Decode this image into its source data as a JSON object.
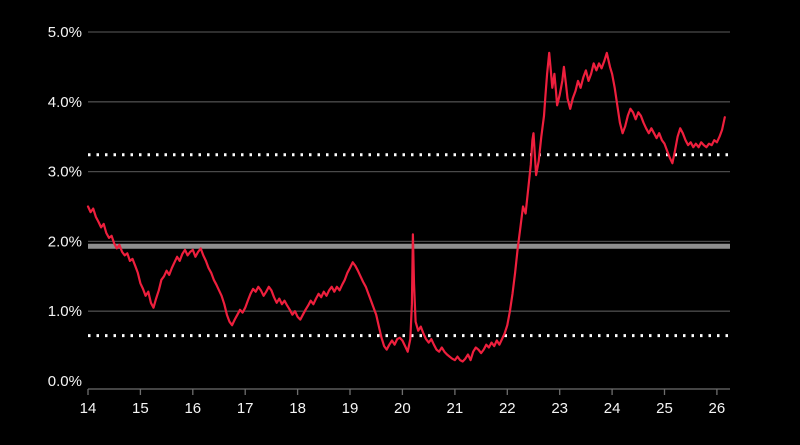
{
  "chart_data": {
    "type": "line",
    "title": "",
    "xlabel": "",
    "ylabel": "",
    "legend": "none",
    "grid": "horizontal",
    "background": "#000000",
    "x_range": [
      14,
      26.25
    ],
    "y_range": [
      0,
      5
    ],
    "y_ticks": [
      {
        "label": "0.0%",
        "value": 0
      },
      {
        "label": "1.0%",
        "value": 1
      },
      {
        "label": "2.0%",
        "value": 2
      },
      {
        "label": "3.0%",
        "value": 3
      },
      {
        "label": "4.0%",
        "value": 4
      },
      {
        "label": "5.0%",
        "value": 5
      }
    ],
    "x_ticks": [
      {
        "label": "14",
        "value": 14
      },
      {
        "label": "15",
        "value": 15
      },
      {
        "label": "16",
        "value": 16
      },
      {
        "label": "17",
        "value": 17
      },
      {
        "label": "18",
        "value": 18
      },
      {
        "label": "19",
        "value": 19
      },
      {
        "label": "20",
        "value": 20
      },
      {
        "label": "21",
        "value": 21
      },
      {
        "label": "22",
        "value": 22
      },
      {
        "label": "23",
        "value": 23
      },
      {
        "label": "24",
        "value": 24
      },
      {
        "label": "25",
        "value": 25
      },
      {
        "label": "26",
        "value": 26
      }
    ],
    "gridline_values": [
      1,
      2,
      3,
      4,
      5
    ],
    "colors": {
      "gridline": "#4a4a4a",
      "axis": "#6e6e6e",
      "average_line": "#8f8f8f",
      "band_line": "#ffffff",
      "series": "#ee1f3d",
      "label": "#f5f5f5"
    },
    "reference_lines": [
      {
        "name": "average-line",
        "value": 1.93,
        "color": "#8f8f8f",
        "width": 5,
        "dash": ""
      },
      {
        "name": "upper-band-line",
        "value": 3.24,
        "color": "#ffffff",
        "width": 3,
        "dash": "2.5 6"
      },
      {
        "name": "lower-band-line",
        "value": 0.65,
        "color": "#ffffff",
        "width": 3,
        "dash": "2.5 6"
      }
    ],
    "series": [
      {
        "name": "line",
        "color": "#ee1f3d",
        "points": [
          [
            14.0,
            2.5
          ],
          [
            14.05,
            2.42
          ],
          [
            14.1,
            2.47
          ],
          [
            14.15,
            2.35
          ],
          [
            14.2,
            2.28
          ],
          [
            14.25,
            2.2
          ],
          [
            14.3,
            2.25
          ],
          [
            14.35,
            2.12
          ],
          [
            14.4,
            2.05
          ],
          [
            14.45,
            2.08
          ],
          [
            14.5,
            1.97
          ],
          [
            14.55,
            1.9
          ],
          [
            14.6,
            1.95
          ],
          [
            14.65,
            1.85
          ],
          [
            14.7,
            1.8
          ],
          [
            14.75,
            1.83
          ],
          [
            14.8,
            1.72
          ],
          [
            14.85,
            1.75
          ],
          [
            14.9,
            1.65
          ],
          [
            14.95,
            1.55
          ],
          [
            15.0,
            1.4
          ],
          [
            15.05,
            1.32
          ],
          [
            15.1,
            1.22
          ],
          [
            15.15,
            1.28
          ],
          [
            15.2,
            1.12
          ],
          [
            15.25,
            1.05
          ],
          [
            15.3,
            1.18
          ],
          [
            15.35,
            1.3
          ],
          [
            15.4,
            1.45
          ],
          [
            15.45,
            1.5
          ],
          [
            15.5,
            1.58
          ],
          [
            15.55,
            1.52
          ],
          [
            15.6,
            1.62
          ],
          [
            15.65,
            1.7
          ],
          [
            15.7,
            1.78
          ],
          [
            15.75,
            1.72
          ],
          [
            15.8,
            1.82
          ],
          [
            15.85,
            1.88
          ],
          [
            15.9,
            1.8
          ],
          [
            15.95,
            1.85
          ],
          [
            16.0,
            1.88
          ],
          [
            16.05,
            1.78
          ],
          [
            16.1,
            1.85
          ],
          [
            16.15,
            1.9
          ],
          [
            16.2,
            1.8
          ],
          [
            16.25,
            1.72
          ],
          [
            16.3,
            1.62
          ],
          [
            16.35,
            1.55
          ],
          [
            16.4,
            1.45
          ],
          [
            16.45,
            1.38
          ],
          [
            16.5,
            1.3
          ],
          [
            16.55,
            1.22
          ],
          [
            16.6,
            1.1
          ],
          [
            16.65,
            0.95
          ],
          [
            16.7,
            0.85
          ],
          [
            16.75,
            0.8
          ],
          [
            16.8,
            0.88
          ],
          [
            16.85,
            0.95
          ],
          [
            16.9,
            1.02
          ],
          [
            16.95,
            0.98
          ],
          [
            17.0,
            1.05
          ],
          [
            17.05,
            1.15
          ],
          [
            17.1,
            1.25
          ],
          [
            17.15,
            1.32
          ],
          [
            17.2,
            1.28
          ],
          [
            17.25,
            1.35
          ],
          [
            17.3,
            1.3
          ],
          [
            17.35,
            1.22
          ],
          [
            17.4,
            1.28
          ],
          [
            17.45,
            1.35
          ],
          [
            17.5,
            1.3
          ],
          [
            17.55,
            1.2
          ],
          [
            17.6,
            1.12
          ],
          [
            17.65,
            1.18
          ],
          [
            17.7,
            1.1
          ],
          [
            17.75,
            1.15
          ],
          [
            17.8,
            1.08
          ],
          [
            17.85,
            1.02
          ],
          [
            17.9,
            0.95
          ],
          [
            17.95,
            1.0
          ],
          [
            18.0,
            0.92
          ],
          [
            18.05,
            0.88
          ],
          [
            18.1,
            0.95
          ],
          [
            18.15,
            1.02
          ],
          [
            18.2,
            1.08
          ],
          [
            18.25,
            1.15
          ],
          [
            18.3,
            1.1
          ],
          [
            18.35,
            1.18
          ],
          [
            18.4,
            1.25
          ],
          [
            18.45,
            1.2
          ],
          [
            18.5,
            1.28
          ],
          [
            18.55,
            1.22
          ],
          [
            18.6,
            1.3
          ],
          [
            18.65,
            1.35
          ],
          [
            18.7,
            1.28
          ],
          [
            18.75,
            1.35
          ],
          [
            18.8,
            1.3
          ],
          [
            18.85,
            1.38
          ],
          [
            18.9,
            1.45
          ],
          [
            18.95,
            1.55
          ],
          [
            19.0,
            1.62
          ],
          [
            19.05,
            1.7
          ],
          [
            19.1,
            1.65
          ],
          [
            19.15,
            1.58
          ],
          [
            19.2,
            1.5
          ],
          [
            19.25,
            1.42
          ],
          [
            19.3,
            1.35
          ],
          [
            19.35,
            1.25
          ],
          [
            19.4,
            1.15
          ],
          [
            19.45,
            1.05
          ],
          [
            19.5,
            0.95
          ],
          [
            19.55,
            0.78
          ],
          [
            19.6,
            0.62
          ],
          [
            19.65,
            0.5
          ],
          [
            19.7,
            0.45
          ],
          [
            19.75,
            0.52
          ],
          [
            19.8,
            0.58
          ],
          [
            19.85,
            0.52
          ],
          [
            19.9,
            0.6
          ],
          [
            19.95,
            0.62
          ],
          [
            20.0,
            0.58
          ],
          [
            20.05,
            0.5
          ],
          [
            20.1,
            0.42
          ],
          [
            20.15,
            0.6
          ],
          [
            20.18,
            1.1
          ],
          [
            20.2,
            2.1
          ],
          [
            20.22,
            1.4
          ],
          [
            20.25,
            0.85
          ],
          [
            20.3,
            0.72
          ],
          [
            20.35,
            0.78
          ],
          [
            20.4,
            0.68
          ],
          [
            20.45,
            0.6
          ],
          [
            20.5,
            0.55
          ],
          [
            20.55,
            0.6
          ],
          [
            20.6,
            0.52
          ],
          [
            20.65,
            0.45
          ],
          [
            20.7,
            0.42
          ],
          [
            20.75,
            0.48
          ],
          [
            20.8,
            0.42
          ],
          [
            20.85,
            0.38
          ],
          [
            20.9,
            0.35
          ],
          [
            20.95,
            0.32
          ],
          [
            21.0,
            0.3
          ],
          [
            21.05,
            0.35
          ],
          [
            21.1,
            0.3
          ],
          [
            21.15,
            0.28
          ],
          [
            21.2,
            0.32
          ],
          [
            21.25,
            0.38
          ],
          [
            21.3,
            0.3
          ],
          [
            21.35,
            0.42
          ],
          [
            21.4,
            0.48
          ],
          [
            21.45,
            0.45
          ],
          [
            21.5,
            0.4
          ],
          [
            21.55,
            0.45
          ],
          [
            21.6,
            0.52
          ],
          [
            21.65,
            0.48
          ],
          [
            21.7,
            0.55
          ],
          [
            21.75,
            0.5
          ],
          [
            21.8,
            0.58
          ],
          [
            21.85,
            0.52
          ],
          [
            21.9,
            0.6
          ],
          [
            21.95,
            0.68
          ],
          [
            22.0,
            0.8
          ],
          [
            22.05,
            1.0
          ],
          [
            22.1,
            1.25
          ],
          [
            22.15,
            1.55
          ],
          [
            22.2,
            1.9
          ],
          [
            22.25,
            2.2
          ],
          [
            22.3,
            2.5
          ],
          [
            22.35,
            2.4
          ],
          [
            22.4,
            2.75
          ],
          [
            22.45,
            3.1
          ],
          [
            22.48,
            3.45
          ],
          [
            22.5,
            3.55
          ],
          [
            22.53,
            3.2
          ],
          [
            22.55,
            2.95
          ],
          [
            22.6,
            3.15
          ],
          [
            22.65,
            3.5
          ],
          [
            22.7,
            3.8
          ],
          [
            22.73,
            4.1
          ],
          [
            22.76,
            4.4
          ],
          [
            22.8,
            4.7
          ],
          [
            22.83,
            4.45
          ],
          [
            22.86,
            4.2
          ],
          [
            22.9,
            4.4
          ],
          [
            22.93,
            4.15
          ],
          [
            22.95,
            3.95
          ],
          [
            23.0,
            4.1
          ],
          [
            23.05,
            4.3
          ],
          [
            23.08,
            4.5
          ],
          [
            23.12,
            4.25
          ],
          [
            23.15,
            4.05
          ],
          [
            23.2,
            3.9
          ],
          [
            23.25,
            4.05
          ],
          [
            23.3,
            4.15
          ],
          [
            23.35,
            4.3
          ],
          [
            23.4,
            4.2
          ],
          [
            23.45,
            4.35
          ],
          [
            23.5,
            4.45
          ],
          [
            23.55,
            4.3
          ],
          [
            23.6,
            4.4
          ],
          [
            23.65,
            4.55
          ],
          [
            23.7,
            4.45
          ],
          [
            23.75,
            4.55
          ],
          [
            23.8,
            4.48
          ],
          [
            23.85,
            4.58
          ],
          [
            23.9,
            4.7
          ],
          [
            23.93,
            4.6
          ],
          [
            23.96,
            4.5
          ],
          [
            24.0,
            4.4
          ],
          [
            24.05,
            4.2
          ],
          [
            24.1,
            3.95
          ],
          [
            24.15,
            3.7
          ],
          [
            24.2,
            3.55
          ],
          [
            24.25,
            3.65
          ],
          [
            24.3,
            3.8
          ],
          [
            24.35,
            3.9
          ],
          [
            24.4,
            3.85
          ],
          [
            24.45,
            3.75
          ],
          [
            24.5,
            3.85
          ],
          [
            24.55,
            3.8
          ],
          [
            24.6,
            3.7
          ],
          [
            24.65,
            3.62
          ],
          [
            24.7,
            3.55
          ],
          [
            24.75,
            3.62
          ],
          [
            24.8,
            3.55
          ],
          [
            24.85,
            3.48
          ],
          [
            24.9,
            3.55
          ],
          [
            24.95,
            3.45
          ],
          [
            25.0,
            3.4
          ],
          [
            25.05,
            3.3
          ],
          [
            25.1,
            3.2
          ],
          [
            25.15,
            3.12
          ],
          [
            25.2,
            3.3
          ],
          [
            25.25,
            3.5
          ],
          [
            25.3,
            3.62
          ],
          [
            25.35,
            3.55
          ],
          [
            25.4,
            3.45
          ],
          [
            25.45,
            3.38
          ],
          [
            25.5,
            3.42
          ],
          [
            25.55,
            3.35
          ],
          [
            25.6,
            3.4
          ],
          [
            25.65,
            3.35
          ],
          [
            25.7,
            3.42
          ],
          [
            25.75,
            3.38
          ],
          [
            25.8,
            3.35
          ],
          [
            25.85,
            3.4
          ],
          [
            25.9,
            3.38
          ],
          [
            25.95,
            3.45
          ],
          [
            26.0,
            3.42
          ],
          [
            26.05,
            3.5
          ],
          [
            26.1,
            3.6
          ],
          [
            26.15,
            3.78
          ]
        ]
      }
    ]
  }
}
